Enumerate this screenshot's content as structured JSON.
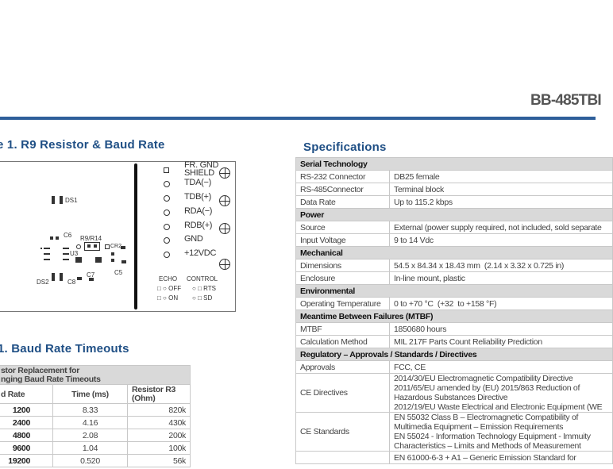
{
  "header": {
    "title": "BB-485TBI"
  },
  "figure": {
    "title": "e 1. R9 Resistor & Baud Rate",
    "terminals": [
      "FR. GND",
      "SHIELD",
      "TDA(−)",
      "TDB(+)",
      "RDA(−)",
      "RDB(+)",
      "GND",
      "+12VDC"
    ],
    "components": {
      "ds1": "DS1",
      "ds2": "DS2",
      "c6": "C6",
      "r9": "R9/R14",
      "cr2": "CR2",
      "u3": "U3",
      "c7": "C7",
      "c5": "C5",
      "c8": "C8"
    },
    "switches": {
      "echo": "ECHO",
      "control": "CONTROL",
      "off": "OFF",
      "on": "ON",
      "rts": "RTS",
      "sd": "SD"
    }
  },
  "baud_table": {
    "title": "1. Baud Rate Timeouts",
    "caption": "stor Replacement for\nnging Baud Rate Timeouts",
    "caption_line1": "stor Replacement for",
    "caption_line2": "nging Baud Rate Timeouts",
    "headers": [
      "d Rate",
      "Time (ms)",
      "Resistor R3 (Ohm)"
    ],
    "rows": [
      [
        "1200",
        "8.33",
        "820k"
      ],
      [
        "2400",
        "4.16",
        "430k"
      ],
      [
        "4800",
        "2.08",
        "200k"
      ],
      [
        "9600",
        "1.04",
        "100k"
      ],
      [
        "19200",
        "0.520",
        "56k"
      ]
    ]
  },
  "specs": {
    "title": "Specifications",
    "sections": [
      {
        "name": "Serial Technology",
        "rows": [
          [
            "RS-232 Connector",
            "DB25 female"
          ],
          [
            "RS-485Connector",
            "Terminal block"
          ],
          [
            "Data Rate",
            "Up to 115.2 kbps"
          ]
        ]
      },
      {
        "name": "Power",
        "rows": [
          [
            "Source",
            "External (power supply required, not included, sold separate"
          ],
          [
            "Input Voltage",
            "9 to 14 Vdc"
          ]
        ]
      },
      {
        "name": "Mechanical",
        "rows": [
          [
            "Dimensions",
            "54.5 x 84.34 x 18.43 mm  (2.14 x 3.32 x 0.725 in)"
          ],
          [
            "Enclosure",
            "In-line mount, plastic"
          ]
        ]
      },
      {
        "name": "Environmental",
        "rows": [
          [
            "Operating Temperature",
            "0 to +70 °C  (+32  to +158 °F)"
          ]
        ]
      },
      {
        "name": "Meantime Between Failures (MTBF)",
        "rows": [
          [
            "MTBF",
            "1850680 hours"
          ],
          [
            "Calculation Method",
            "MIL 217F Parts Count Reliability Prediction"
          ]
        ]
      },
      {
        "name": "Regulatory – Approvals / Standards / Directives",
        "rows": [
          [
            "Approvals",
            "FCC, CE"
          ],
          [
            "CE Directives",
            "2014/30/EU Electromagnetic Compatibility Directive\n2011/65/EU amended by (EU) 2015/863 Reduction of\nHazardous Substances Directive\n2012/19/EU Waste Electrical and Electronic Equipment (WE"
          ],
          [
            "CE Standards",
            "EN 55032 Class B – Electromagnetic Compatibility of\nMultimedia Equipment – Emission Requirements\nEN 55024 - Information Technology Equipment - Immuity\nCharacteristics – Limits and Methods of Measurement"
          ],
          [
            "",
            "EN 61000-6-3 + A1 – Generic Emission Standard for"
          ]
        ]
      }
    ]
  }
}
